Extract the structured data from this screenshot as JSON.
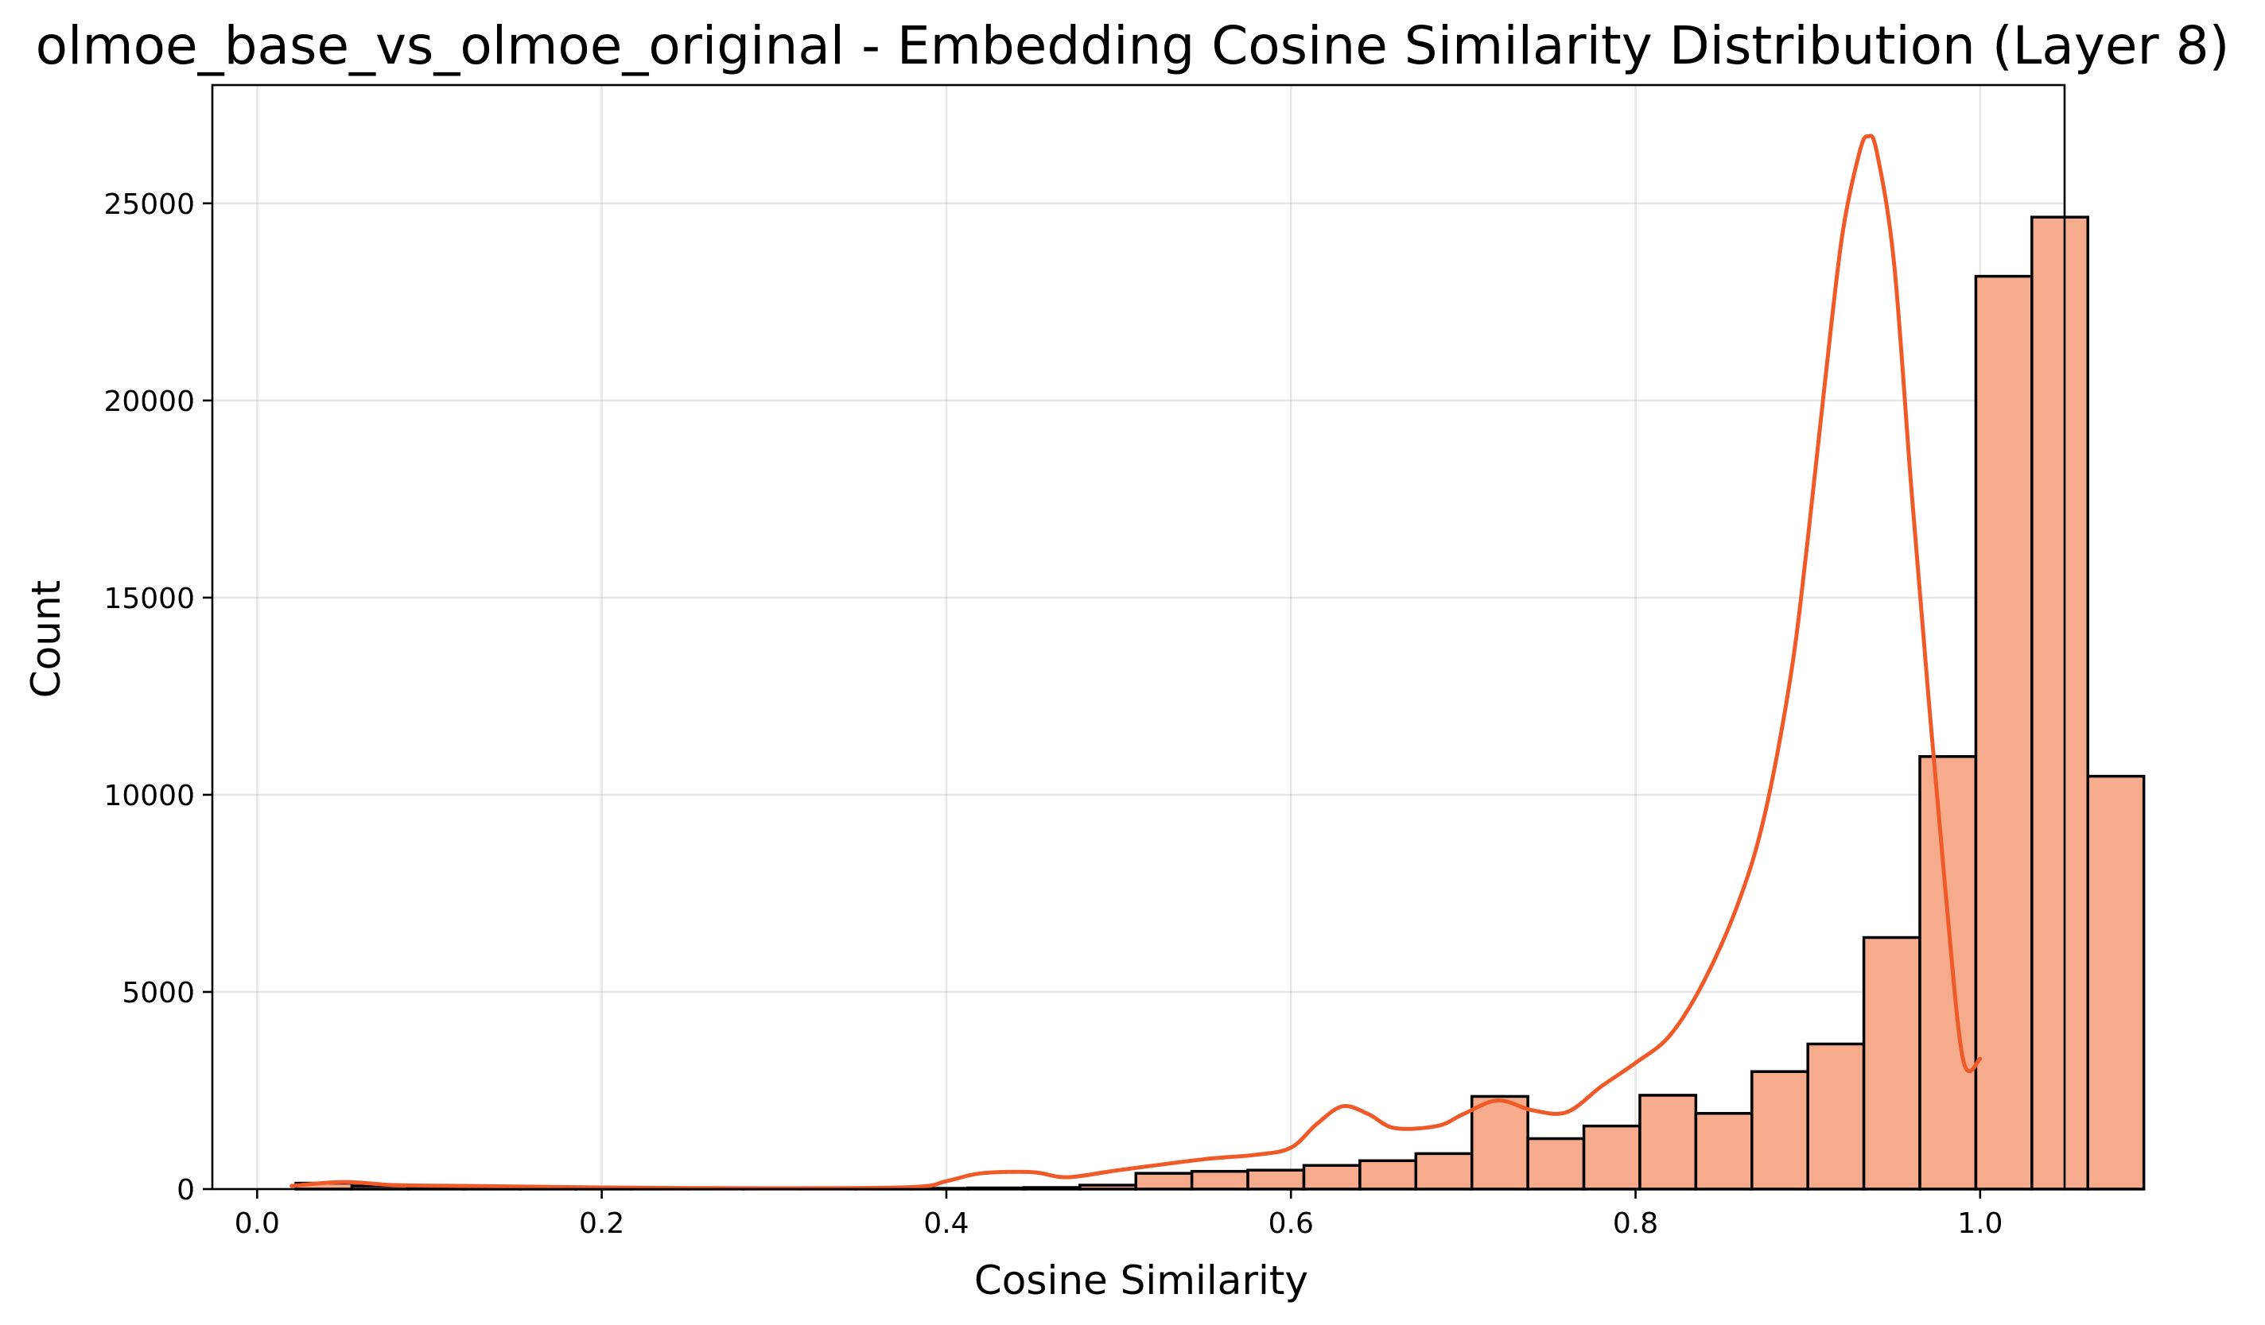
{
  "chart_data": {
    "type": "bar",
    "title": "olmoe_base_vs_olmoe_original - Embedding Cosine Similarity Distribution (Layer 8)",
    "xlabel": "Cosine Similarity",
    "ylabel": "Count",
    "xlim": [
      -0.026,
      1.049
    ],
    "ylim": [
      0,
      28000
    ],
    "xticks": [
      0.0,
      0.2,
      0.4,
      0.6,
      0.8,
      1.0
    ],
    "xtick_labels": [
      "0.0",
      "0.2",
      "0.4",
      "0.6",
      "0.8",
      "1.0"
    ],
    "yticks": [
      0,
      5000,
      10000,
      15000,
      20000,
      25000
    ],
    "ytick_labels": [
      "0",
      "5000",
      "10000",
      "15000",
      "20000",
      "25000"
    ],
    "grid": true,
    "bar_color": "#f7ab8d",
    "line_color": "#f05a28",
    "bins": {
      "start": 0.0225,
      "width": 0.0325,
      "counts": [
        150,
        80,
        50,
        40,
        30,
        20,
        15,
        15,
        10,
        10,
        15,
        20,
        30,
        40,
        100,
        400,
        450,
        480,
        600,
        720,
        900,
        2350,
        1280,
        1600,
        2380,
        1920,
        2980,
        3680,
        6380,
        10970,
        23150,
        24650,
        10470
      ]
    },
    "kde": {
      "x": [
        0.02,
        0.05,
        0.08,
        0.12,
        0.2,
        0.3,
        0.38,
        0.4,
        0.42,
        0.45,
        0.47,
        0.5,
        0.55,
        0.58,
        0.6,
        0.615,
        0.63,
        0.645,
        0.66,
        0.685,
        0.7,
        0.72,
        0.74,
        0.76,
        0.78,
        0.8,
        0.82,
        0.84,
        0.86,
        0.875,
        0.89,
        0.9,
        0.91,
        0.92,
        0.93,
        0.935,
        0.94,
        0.95,
        0.96,
        0.97,
        0.98,
        0.99,
        1.0
      ],
      "y": [
        80,
        180,
        100,
        80,
        40,
        20,
        50,
        200,
        400,
        430,
        300,
        480,
        760,
        870,
        1050,
        1650,
        2100,
        1900,
        1550,
        1600,
        1900,
        2250,
        2000,
        1950,
        2600,
        3200,
        3900,
        5300,
        7300,
        9500,
        13000,
        16500,
        20500,
        24200,
        26300,
        26700,
        26300,
        23500,
        17800,
        12500,
        7500,
        3300,
        3300
      ]
    }
  }
}
